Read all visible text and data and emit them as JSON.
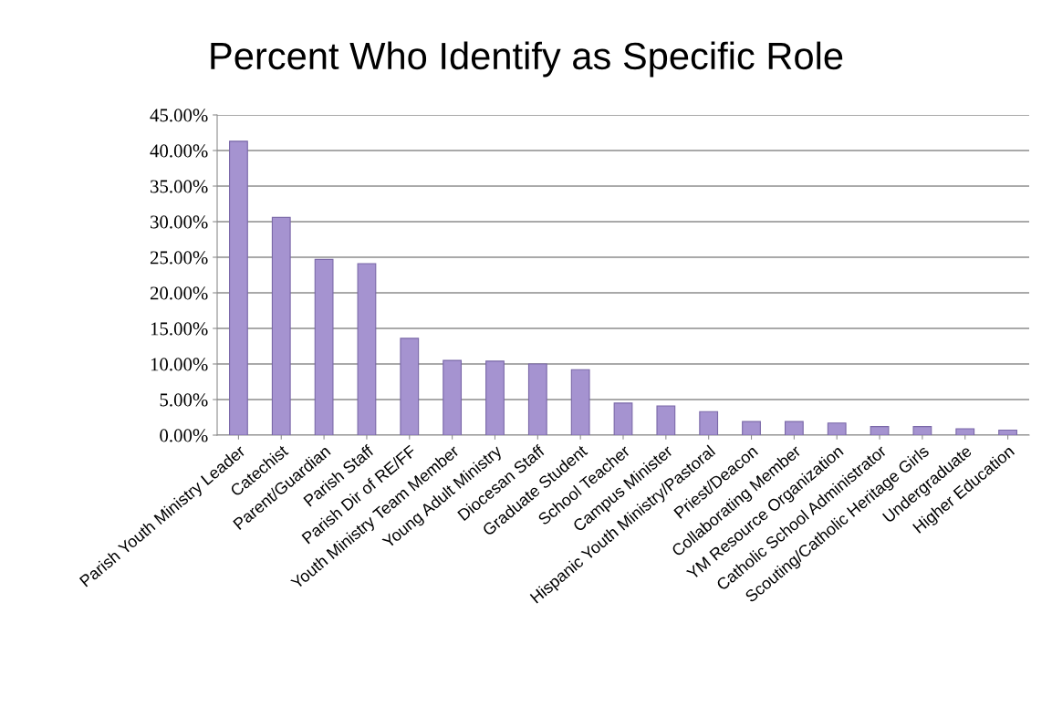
{
  "chart_data": {
    "type": "bar",
    "title": "Percent Who Identify as Specific Role",
    "categories": [
      "Parish Youth Ministry Leader",
      "Catechist",
      "Parent/Guardian",
      "Parish Staff",
      "Parish Dir of RE/FF",
      "Youth Ministry Team Member",
      "Young Adult Ministry",
      "Diocesan Staff",
      "Graduate Student",
      "School Teacher",
      "Campus Minister",
      "Hispanic Youth Ministry/Pastoral",
      "Priest/Deacon",
      "Collaborating Member",
      "YM Resource Organization",
      "Catholic School Administrator",
      "Scouting/Catholic Heritage Girls",
      "Undergraduate",
      "Higher Education"
    ],
    "values": [
      41.3,
      30.6,
      24.7,
      24.1,
      13.6,
      10.5,
      10.4,
      10.0,
      9.2,
      4.5,
      4.1,
      3.3,
      1.9,
      1.9,
      1.7,
      1.2,
      1.2,
      0.9,
      0.7
    ],
    "color": "#a593d0",
    "ylim": [
      0,
      45
    ],
    "yticks": [
      {
        "value": 0,
        "label": "0.00%"
      },
      {
        "value": 5,
        "label": "5.00%"
      },
      {
        "value": 10,
        "label": "10.00%"
      },
      {
        "value": 15,
        "label": "15.00%"
      },
      {
        "value": 20,
        "label": "20.00%"
      },
      {
        "value": 25,
        "label": "25.00%"
      },
      {
        "value": 30,
        "label": "30.00%"
      },
      {
        "value": 35,
        "label": "35.00%"
      },
      {
        "value": 40,
        "label": "40.00%"
      },
      {
        "value": 45,
        "label": "45.00%"
      }
    ],
    "grid": "y",
    "legend": false
  }
}
